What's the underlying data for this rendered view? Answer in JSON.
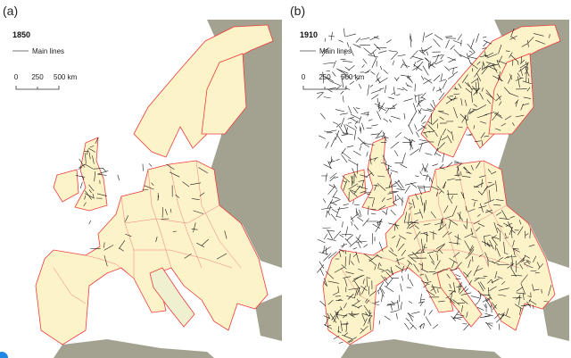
{
  "panels": [
    {
      "label": "(a)",
      "year": "1850",
      "legend": "Main lines",
      "scale": [
        "0",
        "250",
        "500 km"
      ]
    },
    {
      "label": "(b)",
      "year": "1910",
      "legend": "Main lines",
      "scale": [
        "0",
        "250",
        "500 km"
      ]
    }
  ]
}
